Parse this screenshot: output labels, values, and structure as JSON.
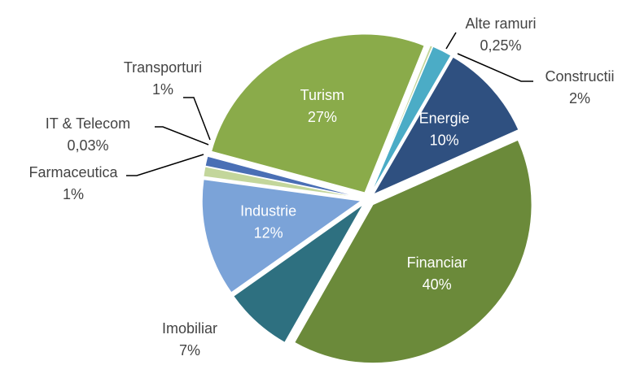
{
  "chart_data": {
    "type": "pie",
    "categories": [
      "Alte ramuri",
      "Constructii",
      "Energie",
      "Financiar",
      "Imobiliar",
      "Industrie",
      "Farmaceutica",
      "IT & Telecom",
      "Transporturi",
      "Turism"
    ],
    "values": [
      0.25,
      2,
      10,
      40,
      7,
      12,
      1,
      0.03,
      1,
      27
    ],
    "value_labels": [
      "0,25%",
      "2%",
      "10%",
      "40%",
      "7%",
      "12%",
      "1%",
      "0,03%",
      "1%",
      "27%"
    ],
    "colors": [
      "#c3d69b",
      "#4bacc6",
      "#2f5080",
      "#6b8a3a",
      "#2e7080",
      "#7ba3d8",
      "#c3d69b",
      "#1f497d",
      "#4a6fb5",
      "#8aab4a"
    ]
  }
}
